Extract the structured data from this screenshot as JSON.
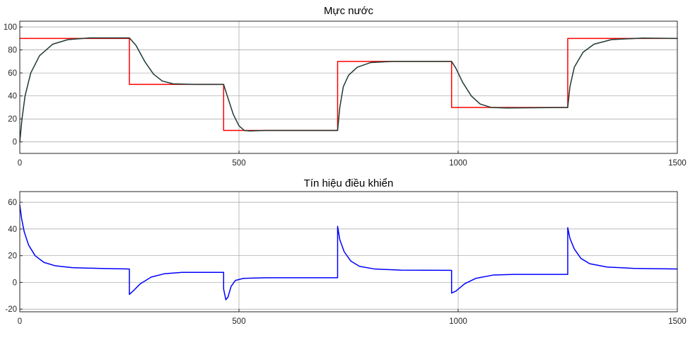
{
  "chart_data": [
    {
      "type": "line",
      "title": "Mực nước",
      "xlabel": "",
      "ylabel": "",
      "xlim": [
        0,
        1500
      ],
      "ylim": [
        -10,
        105
      ],
      "xticks": [
        0,
        500,
        1000,
        1500
      ],
      "yticks": [
        0,
        20,
        40,
        60,
        80,
        100
      ],
      "grid": true,
      "series": [
        {
          "color": "#ff0000",
          "style": "step",
          "points": [
            [
              0,
              90
            ],
            [
              250,
              90
            ],
            [
              250,
              50
            ],
            [
              465,
              50
            ],
            [
              465,
              10
            ],
            [
              725,
              10
            ],
            [
              725,
              70
            ],
            [
              985,
              70
            ],
            [
              985,
              30
            ],
            [
              1250,
              30
            ],
            [
              1250,
              90
            ],
            [
              1500,
              90
            ]
          ]
        },
        {
          "color": "#1f3a33",
          "style": "smooth",
          "points": [
            [
              0,
              0
            ],
            [
              5,
              20
            ],
            [
              12,
              40
            ],
            [
              25,
              60
            ],
            [
              45,
              75
            ],
            [
              75,
              85
            ],
            [
              110,
              89
            ],
            [
              160,
              90.5
            ],
            [
              250,
              90.5
            ],
            [
              265,
              84
            ],
            [
              285,
              70
            ],
            [
              305,
              59
            ],
            [
              325,
              53
            ],
            [
              350,
              50.5
            ],
            [
              400,
              50
            ],
            [
              465,
              50
            ],
            [
              475,
              38
            ],
            [
              487,
              24
            ],
            [
              500,
              14
            ],
            [
              512,
              10
            ],
            [
              525,
              9.5
            ],
            [
              560,
              10
            ],
            [
              725,
              10
            ],
            [
              730,
              30
            ],
            [
              738,
              48
            ],
            [
              750,
              58
            ],
            [
              770,
              65
            ],
            [
              800,
              69
            ],
            [
              850,
              70
            ],
            [
              985,
              70
            ],
            [
              995,
              64
            ],
            [
              1010,
              52
            ],
            [
              1030,
              40
            ],
            [
              1050,
              33
            ],
            [
              1075,
              30
            ],
            [
              1110,
              29.5
            ],
            [
              1250,
              30
            ],
            [
              1255,
              48
            ],
            [
              1265,
              65
            ],
            [
              1285,
              78
            ],
            [
              1310,
              85
            ],
            [
              1350,
              89
            ],
            [
              1420,
              90.3
            ],
            [
              1500,
              90
            ]
          ]
        }
      ]
    },
    {
      "type": "line",
      "title": "Tín hiệu điều khiển",
      "xlabel": "",
      "ylabel": "",
      "xlim": [
        0,
        1500
      ],
      "ylim": [
        -22,
        68
      ],
      "xticks": [
        0,
        500,
        1000,
        1500
      ],
      "yticks": [
        -20,
        0,
        20,
        40,
        60
      ],
      "grid": true,
      "series": [
        {
          "color": "#0000ff",
          "style": "smooth",
          "points": [
            [
              0,
              58
            ],
            [
              4,
              48
            ],
            [
              10,
              38
            ],
            [
              20,
              28
            ],
            [
              35,
              20
            ],
            [
              55,
              15
            ],
            [
              80,
              12.5
            ],
            [
              120,
              11
            ],
            [
              180,
              10.5
            ],
            [
              250,
              10
            ],
            [
              250,
              -9
            ],
            [
              260,
              -6
            ],
            [
              275,
              -1
            ],
            [
              300,
              4
            ],
            [
              330,
              6.5
            ],
            [
              370,
              7.5
            ],
            [
              465,
              7.5
            ],
            [
              465,
              -5
            ],
            [
              470,
              -13
            ],
            [
              475,
              -11
            ],
            [
              482,
              -3
            ],
            [
              492,
              1.5
            ],
            [
              510,
              3
            ],
            [
              560,
              3.5
            ],
            [
              725,
              3.5
            ],
            [
              725,
              42
            ],
            [
              730,
              32
            ],
            [
              740,
              23
            ],
            [
              755,
              16
            ],
            [
              775,
              12
            ],
            [
              810,
              10
            ],
            [
              870,
              9.2
            ],
            [
              985,
              9
            ],
            [
              985,
              -8
            ],
            [
              995,
              -6.5
            ],
            [
              1015,
              -1
            ],
            [
              1040,
              3
            ],
            [
              1080,
              5.5
            ],
            [
              1130,
              6
            ],
            [
              1250,
              6
            ],
            [
              1250,
              41
            ],
            [
              1255,
              33
            ],
            [
              1265,
              25
            ],
            [
              1280,
              18
            ],
            [
              1300,
              14
            ],
            [
              1340,
              11.5
            ],
            [
              1400,
              10.5
            ],
            [
              1500,
              10
            ]
          ]
        }
      ]
    }
  ]
}
